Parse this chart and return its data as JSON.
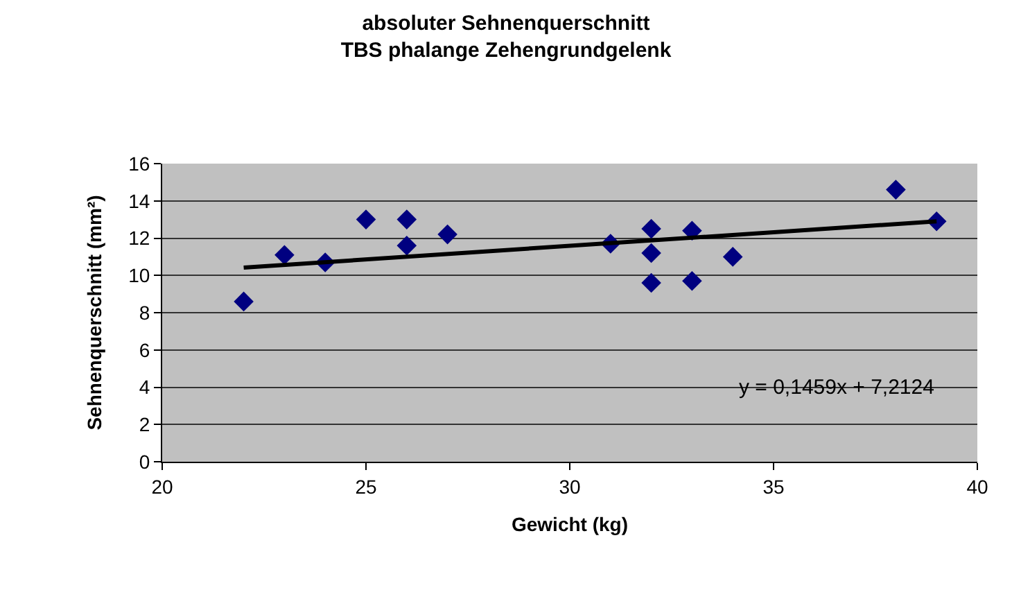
{
  "chart_data": {
    "type": "scatter",
    "title": "absoluter Sehnenquerschnitt\nTBS phalange Zehengrundgelenk",
    "xlabel": "Gewicht (kg)",
    "ylabel": "Sehnenquerschnitt (mm²)",
    "series": [
      {
        "color": "#000080",
        "marker": "diamond",
        "x": [
          22,
          23,
          24,
          25,
          26,
          26,
          27,
          31,
          32,
          32,
          32,
          33,
          33,
          34,
          38,
          39
        ],
        "values": [
          8.6,
          11.1,
          10.7,
          13.0,
          13.0,
          11.6,
          12.2,
          11.7,
          12.5,
          11.2,
          9.6,
          12.4,
          9.7,
          11.0,
          14.6,
          12.9
        ]
      },
      {
        "type": "line",
        "color": "#000000",
        "marker": "none",
        "line_style": "solid",
        "x": [
          22,
          39
        ],
        "values": [
          10.42,
          12.9
        ]
      }
    ],
    "annotations": [
      "y = 0,1459x + 7,2124"
    ],
    "xlim": [
      20,
      40
    ],
    "xticks": [
      20,
      25,
      30,
      35,
      40
    ],
    "ylim": [
      0,
      16
    ],
    "yticks": [
      0,
      2,
      4,
      6,
      8,
      10,
      12,
      14,
      16
    ],
    "grid": "y"
  }
}
